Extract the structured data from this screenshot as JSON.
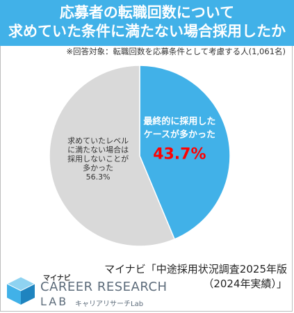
{
  "title_lines": [
    "応募者の転職回数について",
    "求めていた条件に満たない場合採用したか"
  ],
  "note": "※回答対象：転職回数を応募条件として考慮する人(1,061名)",
  "chart_data": {
    "type": "pie",
    "slices": [
      {
        "label_lines": [
          "最終的に採用した",
          "ケースが多かった"
        ],
        "value": 43.7,
        "value_label": "43.7%",
        "color": "#41b1e8"
      },
      {
        "label_lines": [
          "求めていたレベル",
          "に満たない場合は",
          "採用しないことが",
          "多かった"
        ],
        "value": 56.3,
        "value_label": "56.3%",
        "color": "#d9d9d9"
      }
    ],
    "start_angle_deg": 0,
    "direction": "clockwise"
  },
  "source_lines": [
    "マイナビ「中途採用状況調査2025年版",
    "（2024年実績）」"
  ],
  "logo": {
    "small": "マイナビ",
    "main": "CAREER RESEARCH",
    "lab": "LAB",
    "kana": "キャリアリサーチLab"
  },
  "colors": {
    "accent": "#41b1e8",
    "highlight": "#ff0000"
  }
}
